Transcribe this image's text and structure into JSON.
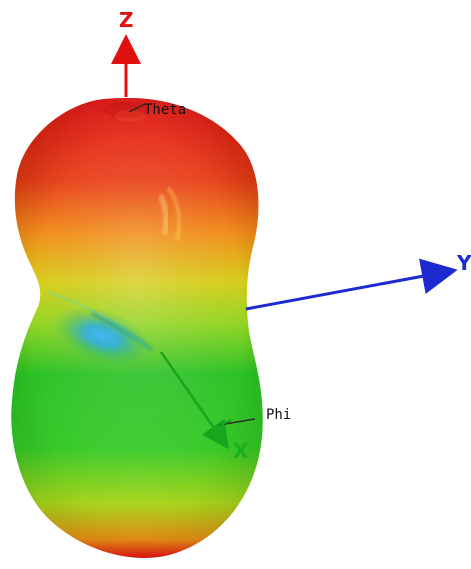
{
  "diagram": {
    "axes": [
      {
        "id": "z",
        "label": "Z",
        "color": "#e01010"
      },
      {
        "id": "y",
        "label": "Y",
        "color": "#1c2ad0"
      },
      {
        "id": "x",
        "label": "X",
        "color": "#19b21f"
      }
    ],
    "angle_labels": {
      "theta": "Theta",
      "phi": "Phi"
    },
    "color_scale": {
      "high": "#e11212",
      "mid_high": "#f29a12",
      "mid": "#b7d818",
      "low": "#21bf27",
      "min": "#29a6ff"
    }
  }
}
